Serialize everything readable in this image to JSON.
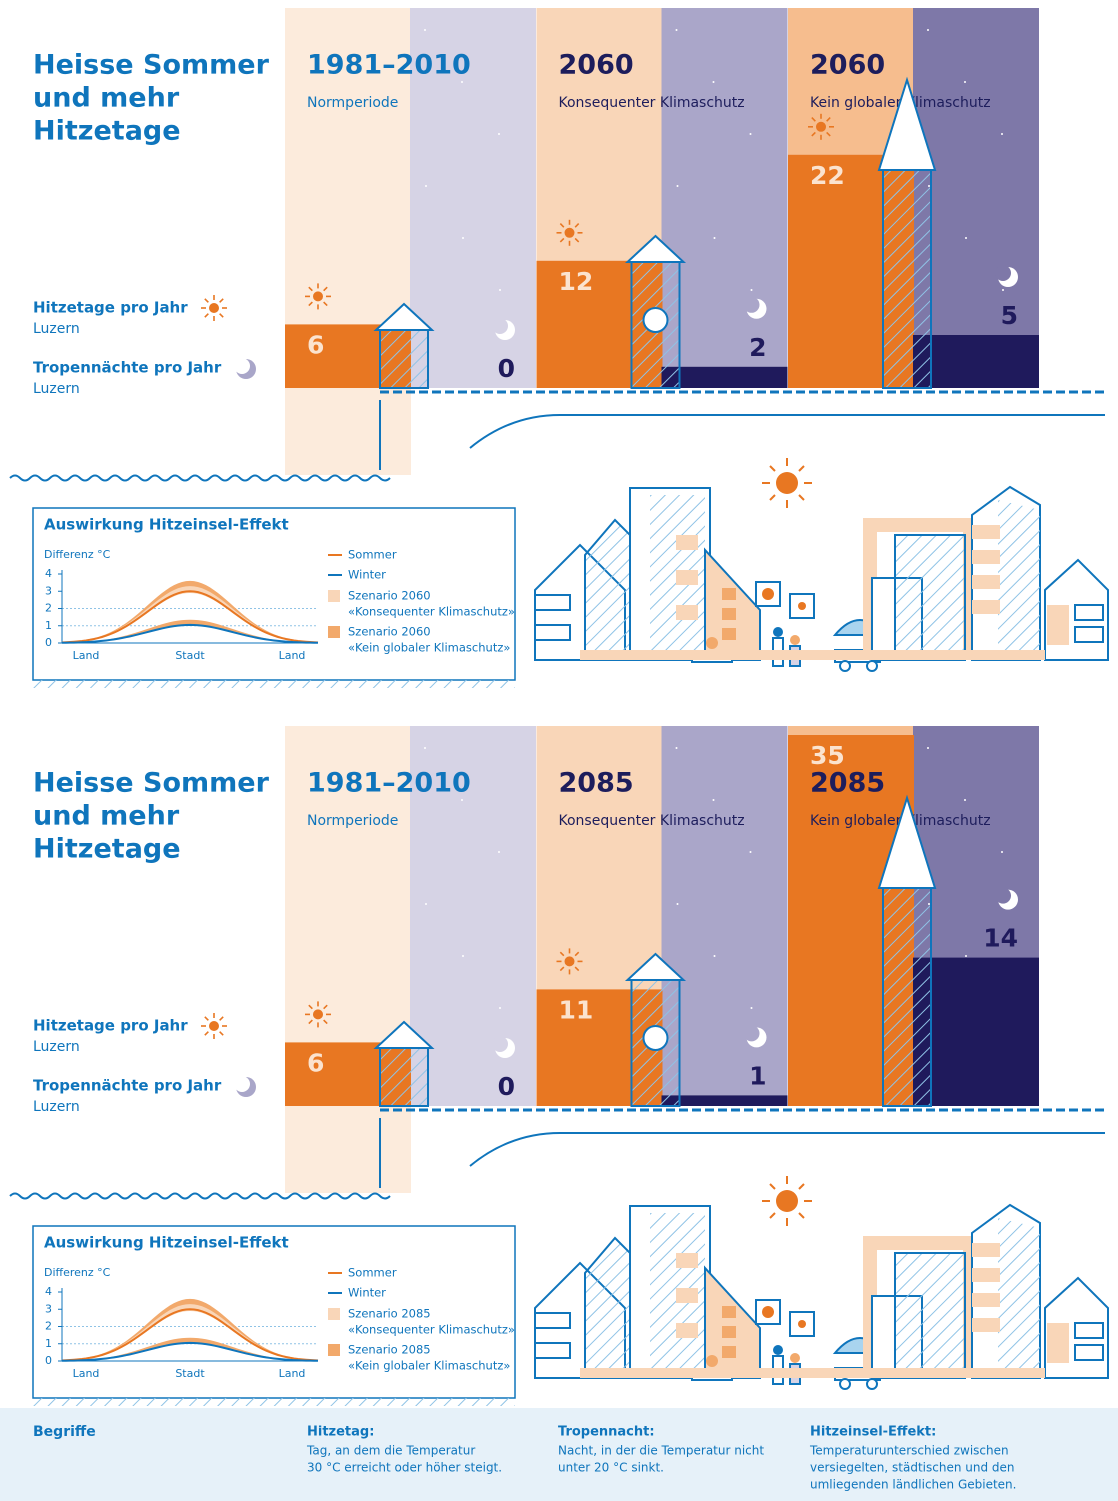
{
  "panels": [
    {
      "title": [
        "Heisse Sommer",
        "und mehr",
        "Hitzetage"
      ],
      "hot_days_label": "Hitzetage pro Jahr",
      "hot_days_place": "Luzern",
      "nights_label": "Tropennächte pro Jahr",
      "nights_place": "Luzern",
      "periods": [
        {
          "year": "1981–2010",
          "label": "Normperiode",
          "hot_days": 6,
          "tropical_nights": 0,
          "day_bg": "#fcebdc",
          "night_bg": "#d6d3e5"
        },
        {
          "year": "2060",
          "label": "Konsequenter Klimaschutz",
          "hot_days": 12,
          "tropical_nights": 2,
          "day_bg": "#f9d6b8",
          "night_bg": "#aaa6c9"
        },
        {
          "year": "2060",
          "label": "Kein globaler Klimaschutz",
          "hot_days": 22,
          "tropical_nights": 5,
          "day_bg": "#f6bd8e",
          "night_bg": "#7e78a8"
        }
      ],
      "inset": {
        "title": "Auswirkung Hitzeinsel-Effekt",
        "y_label": "Differenz °C",
        "yticks": [
          0,
          1,
          2,
          3,
          4
        ],
        "ylim": [
          0,
          4
        ],
        "categories": [
          "Land",
          "Stadt",
          "Land"
        ],
        "legend": [
          {
            "name": "Sommer",
            "color": "#e87722"
          },
          {
            "name": "Winter",
            "color": "#0f75bc"
          },
          {
            "name": "Szenario 2060",
            "subtitle": "«Konsequenter Klimaschutz»",
            "color": "#f9d6b8"
          },
          {
            "name": "Szenario 2060",
            "subtitle": "«Kein globaler Klimaschutz»",
            "color": "#f2a96b"
          }
        ]
      }
    },
    {
      "title": [
        "Heisse Sommer",
        "und mehr",
        "Hitzetage"
      ],
      "hot_days_label": "Hitzetage pro Jahr",
      "hot_days_place": "Luzern",
      "nights_label": "Tropennächte pro Jahr",
      "nights_place": "Luzern",
      "periods": [
        {
          "year": "1981–2010",
          "label": "Normperiode",
          "hot_days": 6,
          "tropical_nights": 0,
          "day_bg": "#fcebdc",
          "night_bg": "#d6d3e5"
        },
        {
          "year": "2085",
          "label": "Konsequenter Klimaschutz",
          "hot_days": 11,
          "tropical_nights": 1,
          "day_bg": "#f9d6b8",
          "night_bg": "#aaa6c9"
        },
        {
          "year": "2085",
          "label": "Kein globaler Klimaschutz",
          "hot_days": 35,
          "tropical_nights": 14,
          "day_bg": "#f6bd8e",
          "night_bg": "#7e78a8"
        }
      ],
      "inset": {
        "title": "Auswirkung Hitzeinsel-Effekt",
        "y_label": "Differenz °C",
        "yticks": [
          0,
          1,
          2,
          3,
          4
        ],
        "ylim": [
          0,
          4
        ],
        "categories": [
          "Land",
          "Stadt",
          "Land"
        ],
        "legend": [
          {
            "name": "Sommer",
            "color": "#e87722"
          },
          {
            "name": "Winter",
            "color": "#0f75bc"
          },
          {
            "name": "Szenario 2085",
            "subtitle": "«Konsequenter Klimaschutz»",
            "color": "#f9d6b8"
          },
          {
            "name": "Szenario 2085",
            "subtitle": "«Kein globaler Klimaschutz»",
            "color": "#f2a96b"
          }
        ]
      }
    }
  ],
  "footer": {
    "title": "Begriffe",
    "terms": [
      {
        "term": "Hitzetag:",
        "lines": [
          "Tag, an dem die Temperatur",
          "30 °C erreicht oder höher steigt."
        ]
      },
      {
        "term": "Tropennacht:",
        "lines": [
          "Nacht, in der die Temperatur nicht",
          "unter 20 °C sinkt."
        ]
      },
      {
        "term": "Hitzeinsel-Effekt:",
        "lines": [
          "Temperaturunterschied zwischen",
          "versiegelten, städtischen und den",
          "umliegenden ländlichen Gebieten."
        ]
      }
    ]
  }
}
